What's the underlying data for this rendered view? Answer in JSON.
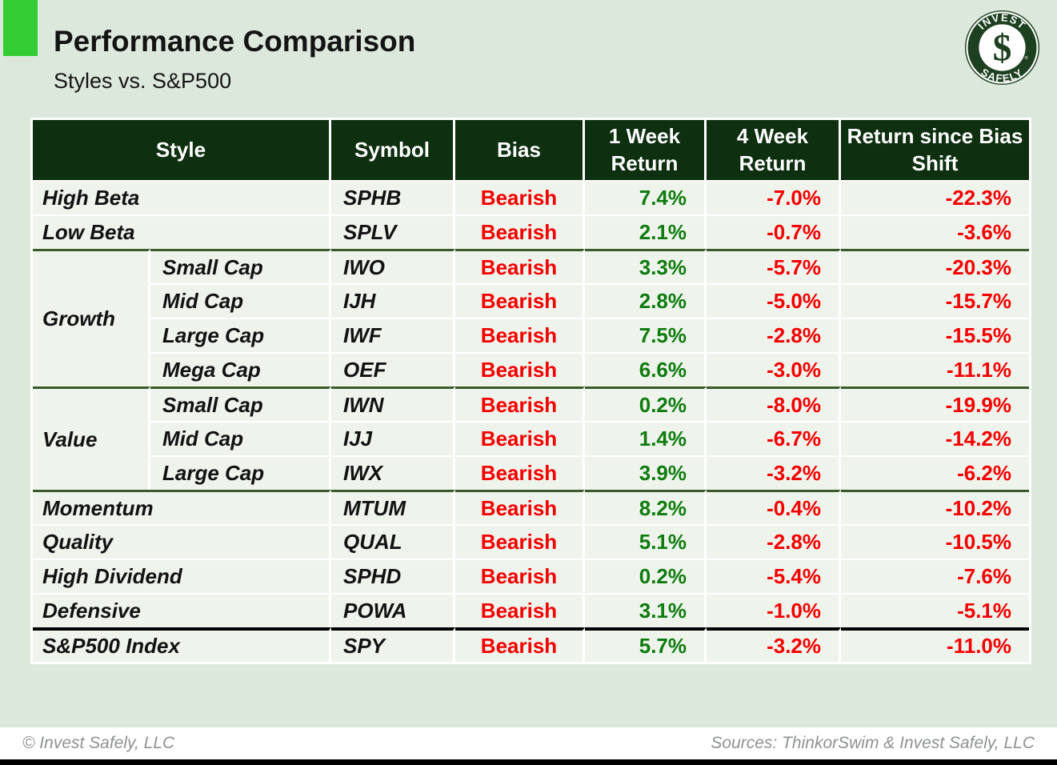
{
  "page": {
    "title": "Performance Comparison",
    "subtitle": "Styles vs. S&P500"
  },
  "theme": {
    "accent_green": "#33CC33",
    "header_green": "#0E2F10",
    "separator_green": "#3A5A2A",
    "positive_green": "#0E7C0E",
    "negative_red": "#F40000",
    "page_background": "#DDE8DD",
    "row_background": "#EEF3EC",
    "logo_green": "#1D4020"
  },
  "logo": {
    "top_text": "INVEST",
    "bottom_text": "SAFELY",
    "monogram": "$",
    "registered_mark": "®"
  },
  "table": {
    "headers": [
      "Style",
      "Symbol",
      "Bias",
      "1 Week Return",
      "4 Week Return",
      "Return since Bias Shift"
    ],
    "rows": [
      {
        "style": "High Beta",
        "symbol": "SPHB",
        "bias": "Bearish",
        "week1": "7.4%",
        "week4": "-7.0%",
        "since": "-22.3%",
        "separator": "thin"
      },
      {
        "style": "Low Beta",
        "symbol": "SPLV",
        "bias": "Bearish",
        "week1": "2.1%",
        "week4": "-0.7%",
        "since": "-3.6%",
        "separator": "thin"
      },
      {
        "group": "Growth",
        "group_span": 4,
        "style": "Small Cap",
        "symbol": "IWO",
        "bias": "Bearish",
        "week1": "3.3%",
        "week4": "-5.7%",
        "since": "-20.3%",
        "separator": "group"
      },
      {
        "in_group": true,
        "style": "Mid Cap",
        "symbol": "IJH",
        "bias": "Bearish",
        "week1": "2.8%",
        "week4": "-5.0%",
        "since": "-15.7%",
        "separator": "thin"
      },
      {
        "in_group": true,
        "style": "Large Cap",
        "symbol": "IWF",
        "bias": "Bearish",
        "week1": "7.5%",
        "week4": "-2.8%",
        "since": "-15.5%",
        "separator": "thin"
      },
      {
        "in_group": true,
        "style": "Mega Cap",
        "symbol": "OEF",
        "bias": "Bearish",
        "week1": "6.6%",
        "week4": "-3.0%",
        "since": "-11.1%",
        "separator": "thin"
      },
      {
        "group": "Value",
        "group_span": 3,
        "style": "Small Cap",
        "symbol": "IWN",
        "bias": "Bearish",
        "week1": "0.2%",
        "week4": "-8.0%",
        "since": "-19.9%",
        "separator": "group"
      },
      {
        "in_group": true,
        "style": "Mid Cap",
        "symbol": "IJJ",
        "bias": "Bearish",
        "week1": "1.4%",
        "week4": "-6.7%",
        "since": "-14.2%",
        "separator": "thin"
      },
      {
        "in_group": true,
        "style": "Large Cap",
        "symbol": "IWX",
        "bias": "Bearish",
        "week1": "3.9%",
        "week4": "-3.2%",
        "since": "-6.2%",
        "separator": "thin"
      },
      {
        "style": "Momentum",
        "symbol": "MTUM",
        "bias": "Bearish",
        "week1": "8.2%",
        "week4": "-0.4%",
        "since": "-10.2%",
        "separator": "group"
      },
      {
        "style": "Quality",
        "symbol": "QUAL",
        "bias": "Bearish",
        "week1": "5.1%",
        "week4": "-2.8%",
        "since": "-10.5%",
        "separator": "thin"
      },
      {
        "style": "High Dividend",
        "symbol": "SPHD",
        "bias": "Bearish",
        "week1": "0.2%",
        "week4": "-5.4%",
        "since": "-7.6%",
        "separator": "thin"
      },
      {
        "style": "Defensive",
        "symbol": "POWA",
        "bias": "Bearish",
        "week1": "3.1%",
        "week4": "-1.0%",
        "since": "-5.1%",
        "separator": "thin"
      },
      {
        "style": "S&P500 Index",
        "symbol": "SPY",
        "bias": "Bearish",
        "week1": "5.7%",
        "week4": "-3.2%",
        "since": "-11.0%",
        "separator": "final"
      }
    ]
  },
  "footer": {
    "copyright": "© Invest Safely, LLC",
    "sources": "Sources: ThinkorSwim & Invest Safely, LLC"
  }
}
